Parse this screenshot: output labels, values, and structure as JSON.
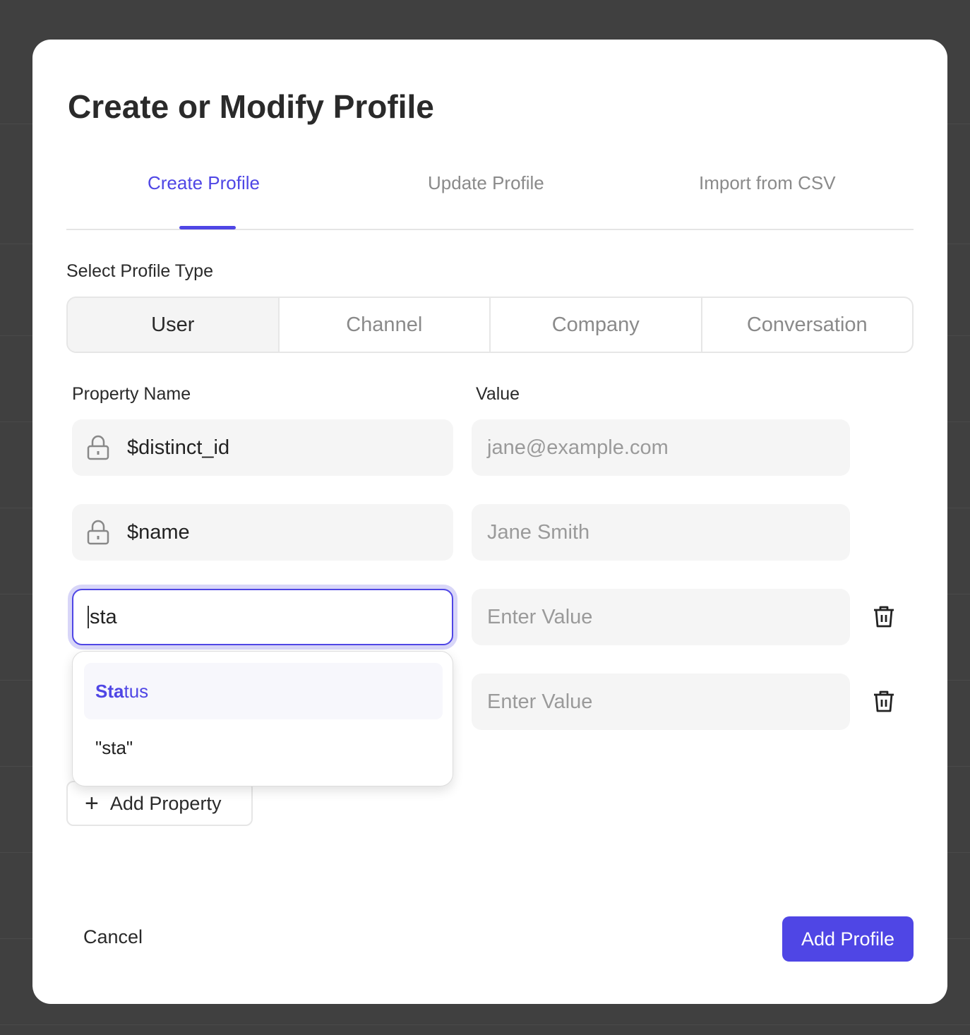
{
  "modal": {
    "title": "Create or Modify Profile",
    "tabs": [
      {
        "label": "Create Profile",
        "active": true
      },
      {
        "label": "Update Profile"
      },
      {
        "label": "Import from CSV"
      }
    ],
    "profile_type_label": "Select Profile Type",
    "profile_types": [
      "User",
      "Channel",
      "Company",
      "Conversation"
    ],
    "selected_profile_type": "User",
    "columns": {
      "name": "Property Name",
      "value": "Value"
    },
    "rows": [
      {
        "name": "$distinct_id",
        "locked": true,
        "value_placeholder": "jane@example.com"
      },
      {
        "name": "$name",
        "locked": true,
        "value_placeholder": "Jane Smith"
      },
      {
        "name": "sta",
        "locked": false,
        "value_placeholder": "Enter Value",
        "focused": true
      },
      {
        "name": "",
        "locked": false,
        "value_placeholder": "Enter Value"
      }
    ],
    "dropdown": {
      "options": [
        {
          "match": "Sta",
          "rest": "tus"
        },
        {
          "label": "\"sta\""
        }
      ]
    },
    "add_property": "Add Property",
    "cancel": "Cancel",
    "submit": "Add Profile",
    "accent": "#4f46e5"
  }
}
